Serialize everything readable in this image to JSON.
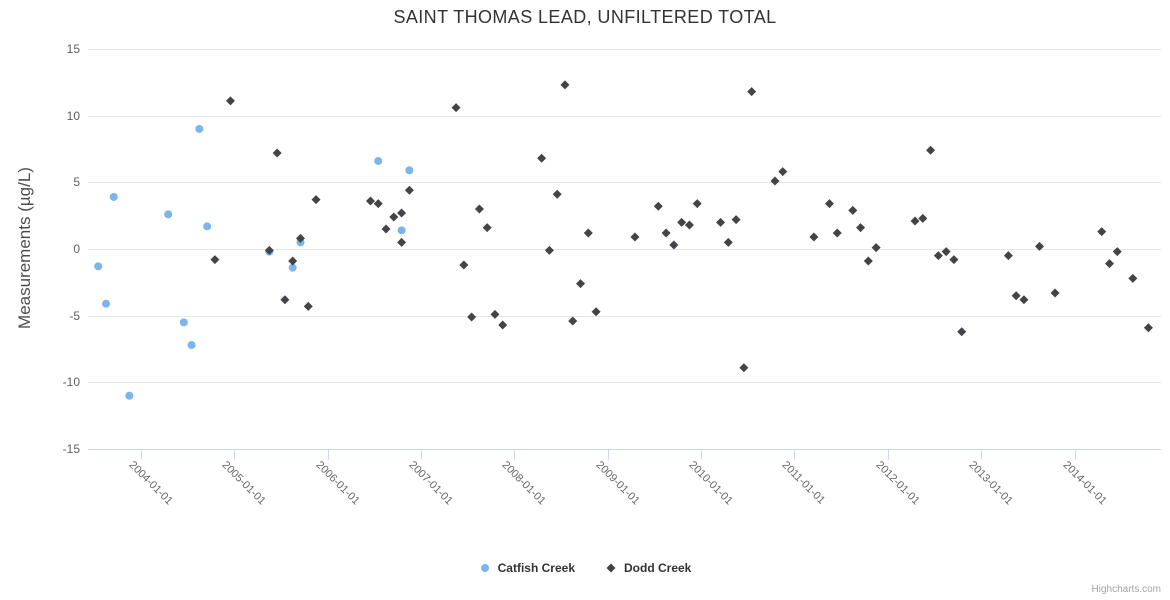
{
  "title": "SAINT THOMAS LEAD, UNFILTERED TOTAL",
  "credit": "Highcharts.com",
  "y_axis": {
    "title": "Measurements (µg/L)",
    "tick_values": [
      15,
      10,
      5,
      0,
      -5,
      -10,
      -15
    ],
    "tick_labels": [
      "15",
      "10",
      "5",
      "0",
      "-5",
      "-10",
      "-15"
    ]
  },
  "x_axis": {
    "tick_labels": [
      "2004-01-01",
      "2005-01-01",
      "2006-01-01",
      "2007-01-01",
      "2008-01-01",
      "2009-01-01",
      "2010-01-01",
      "2011-01-01",
      "2012-01-01",
      "2013-01-01",
      "2014-01-01"
    ]
  },
  "colors": {
    "grid": "#e6e6e6",
    "axis_line": "#ccd6eb",
    "title_text": "#333333",
    "tick_text": "#606060"
  },
  "chart_data": {
    "type": "scatter",
    "title": "SAINT THOMAS LEAD, UNFILTERED TOTAL",
    "xlabel": "",
    "ylabel": "Measurements (µg/L)",
    "ylim": [
      -15,
      15
    ],
    "grid": "horizontal-only",
    "legend_position": "bottom-center",
    "x_axis_tick_labels": [
      "2004-01-01",
      "2005-01-01",
      "2006-01-01",
      "2007-01-01",
      "2008-01-01",
      "2009-01-01",
      "2010-01-01",
      "2011-01-01",
      "2012-01-01",
      "2013-01-01",
      "2014-01-01"
    ],
    "series": [
      {
        "name": "Catfish Creek",
        "marker": "circle",
        "color": "#7cb5ec",
        "points": [
          [
            "2003-07",
            -1.3
          ],
          [
            "2003-08",
            -4.1
          ],
          [
            "2003-09",
            3.9
          ],
          [
            "2003-11",
            -11.0
          ],
          [
            "2004-04",
            2.6
          ],
          [
            "2004-06",
            -5.5
          ],
          [
            "2004-07",
            -7.2
          ],
          [
            "2004-08",
            9.0
          ],
          [
            "2004-09",
            1.7
          ],
          [
            "2005-05",
            -0.2
          ],
          [
            "2005-08",
            -1.4
          ],
          [
            "2005-09",
            0.5
          ],
          [
            "2006-07",
            6.6
          ],
          [
            "2006-10",
            1.4
          ],
          [
            "2006-11",
            5.9
          ]
        ]
      },
      {
        "name": "Dodd Creek",
        "marker": "diamond",
        "color": "#434348",
        "points": [
          [
            "2004-10",
            -0.8
          ],
          [
            "2004-12",
            11.1
          ],
          [
            "2005-05",
            -0.1
          ],
          [
            "2005-06",
            7.2
          ],
          [
            "2005-07",
            -3.8
          ],
          [
            "2005-08",
            -0.9
          ],
          [
            "2005-09",
            0.8
          ],
          [
            "2005-10",
            -4.3
          ],
          [
            "2005-11",
            3.7
          ],
          [
            "2006-06",
            3.6
          ],
          [
            "2006-07",
            3.4
          ],
          [
            "2006-08",
            1.5
          ],
          [
            "2006-09",
            2.4
          ],
          [
            "2006-10",
            2.7
          ],
          [
            "2006-10",
            0.5
          ],
          [
            "2006-11",
            4.4
          ],
          [
            "2007-05",
            10.6
          ],
          [
            "2007-06",
            -1.2
          ],
          [
            "2007-07",
            -5.1
          ],
          [
            "2007-08",
            3.0
          ],
          [
            "2007-09",
            1.6
          ],
          [
            "2007-10",
            -4.9
          ],
          [
            "2007-11",
            -5.7
          ],
          [
            "2008-04",
            6.8
          ],
          [
            "2008-05",
            -0.1
          ],
          [
            "2008-06",
            4.1
          ],
          [
            "2008-07",
            12.3
          ],
          [
            "2008-08",
            -5.4
          ],
          [
            "2008-09",
            -2.6
          ],
          [
            "2008-10",
            1.2
          ],
          [
            "2008-11",
            -4.7
          ],
          [
            "2009-04",
            0.9
          ],
          [
            "2009-07",
            3.2
          ],
          [
            "2009-08",
            1.2
          ],
          [
            "2009-09",
            0.3
          ],
          [
            "2009-10",
            2.0
          ],
          [
            "2009-11",
            1.8
          ],
          [
            "2009-12",
            3.4
          ],
          [
            "2010-03",
            2.0
          ],
          [
            "2010-04",
            0.5
          ],
          [
            "2010-05",
            2.2
          ],
          [
            "2010-06",
            -8.9
          ],
          [
            "2010-07",
            11.8
          ],
          [
            "2010-10",
            5.1
          ],
          [
            "2010-11",
            5.8
          ],
          [
            "2011-03",
            0.9
          ],
          [
            "2011-05",
            3.4
          ],
          [
            "2011-06",
            1.2
          ],
          [
            "2011-08",
            2.9
          ],
          [
            "2011-09",
            1.6
          ],
          [
            "2011-10",
            -0.9
          ],
          [
            "2011-11",
            0.1
          ],
          [
            "2012-04",
            2.1
          ],
          [
            "2012-05",
            2.3
          ],
          [
            "2012-06",
            7.4
          ],
          [
            "2012-07",
            -0.5
          ],
          [
            "2012-08",
            -0.2
          ],
          [
            "2012-09",
            -0.8
          ],
          [
            "2012-10",
            -6.2
          ],
          [
            "2013-04",
            -0.5
          ],
          [
            "2013-05",
            -3.5
          ],
          [
            "2013-06",
            -3.8
          ],
          [
            "2013-08",
            0.2
          ],
          [
            "2013-10",
            -3.3
          ],
          [
            "2014-04",
            1.3
          ],
          [
            "2014-05",
            -1.1
          ],
          [
            "2014-06",
            -0.2
          ],
          [
            "2014-08",
            -2.2
          ],
          [
            "2014-10",
            -5.9
          ]
        ]
      }
    ]
  }
}
